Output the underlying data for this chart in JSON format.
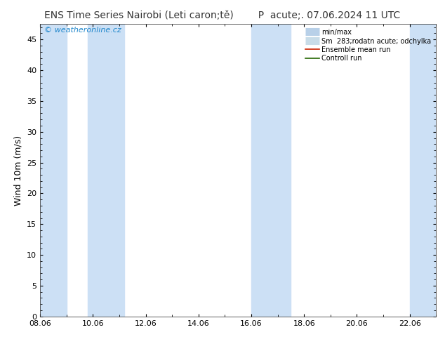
{
  "title_left": "ENS Time Series Nairobi (Leti caron;tě)",
  "title_right": "P  acute;. 07.06.2024 11 UTC",
  "ylabel": "Wind 10m (m/s)",
  "watermark": "© weatheronline.cz",
  "xlim": [
    0,
    15.0
  ],
  "ylim": [
    0,
    47.5
  ],
  "yticks": [
    0,
    5,
    10,
    15,
    20,
    25,
    30,
    35,
    40,
    45
  ],
  "xtick_labels": [
    "08.06",
    "10.06",
    "12.06",
    "14.06",
    "16.06",
    "18.06",
    "20.06",
    "22.06"
  ],
  "xtick_positions": [
    0,
    2,
    4,
    6,
    8,
    10,
    12,
    14
  ],
  "shaded_bands": [
    [
      0.0,
      1.0
    ],
    [
      1.8,
      3.2
    ],
    [
      8.0,
      9.5
    ],
    [
      14.0,
      15.0
    ]
  ],
  "shade_color": "#cce0f5",
  "bg_color": "#ffffff",
  "title_fontsize": 10,
  "ylabel_fontsize": 9,
  "tick_fontsize": 8,
  "watermark_color": "#2288cc",
  "legend_minmax_color": "#b8d0e8",
  "legend_sm_color": "#c8dce8",
  "legend_ensemble_color": "#cc2200",
  "legend_control_color": "#226600"
}
